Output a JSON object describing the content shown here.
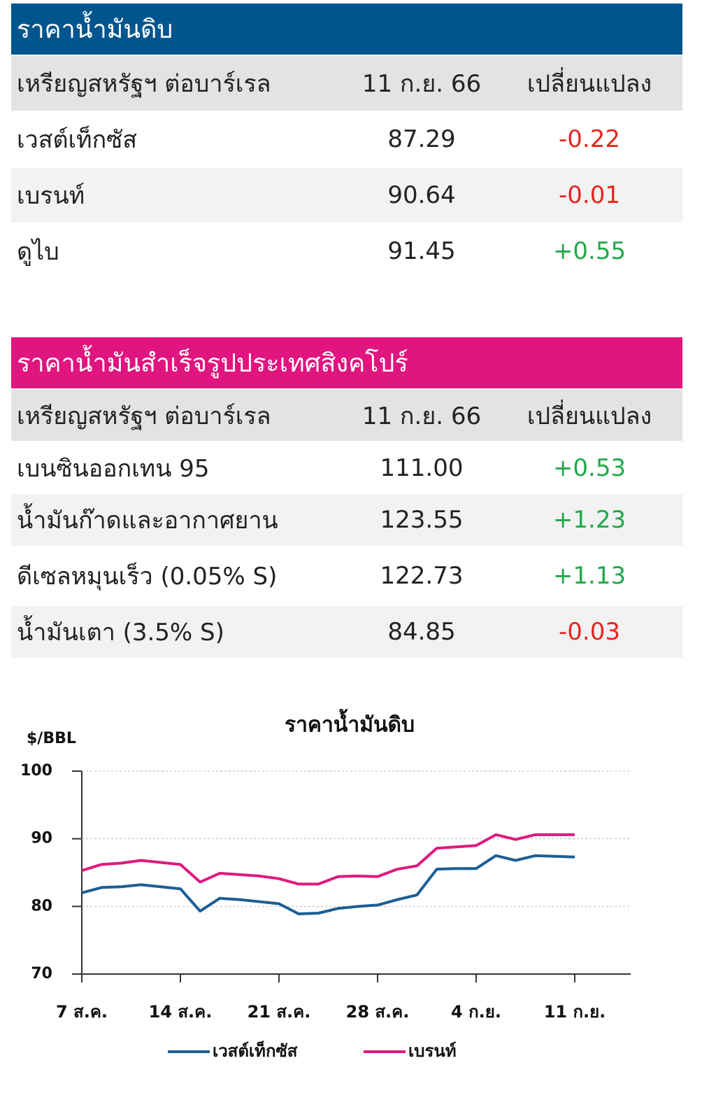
{
  "tables": [
    {
      "title": "ราคาน้ำมันดิบ",
      "header": [
        "เหรียญสหรัฐฯ ต่อบาร์เรล",
        "11 ก.ย. 66",
        "เปลี่ยนแปลง"
      ],
      "rows": [
        [
          "เวสต์เท็กซัส",
          "87.29",
          "-0.22"
        ],
        [
          "เบรนท์",
          "90.64",
          "-0.01"
        ],
        [
          "ดูไบ",
          "91.45",
          "+0.55"
        ]
      ]
    },
    {
      "title": "ราคาน้ำมันสำเร็จรูปประเทศสิงคโปร์",
      "header": [
        "เหรียญสหรัฐฯ ต่อบาร์เรล",
        "11 ก.ย. 66",
        "เปลี่ยนแปลง"
      ],
      "rows": [
        [
          "เบนซินออกเทน 95",
          "111.00",
          "+0.53"
        ],
        [
          "น้ำมันก๊าดและอากาศยาน",
          "123.55",
          "+1.23"
        ],
        [
          "ดีเซลหมุนเร็ว (0.05% S)",
          "122.73",
          "+1.13"
        ],
        [
          "น้ำมันเตา (3.5% S)",
          "84.85",
          "-0.03"
        ]
      ]
    }
  ],
  "chart_data": {
    "type": "line",
    "title": "ราคาน้ำมันดิบ",
    "y_label": "$/BBL",
    "categories": [
      "7 ส.ค.",
      null,
      null,
      null,
      null,
      "14 ส.ค.",
      null,
      null,
      null,
      null,
      "21 ส.ค.",
      null,
      null,
      null,
      null,
      "28 ส.ค.",
      null,
      null,
      null,
      null,
      "4 ก.ย.",
      null,
      null,
      null,
      null,
      "11 ก.ย."
    ],
    "series": [
      {
        "name": "เวสต์เท็กซัส",
        "color": "#1b5e96",
        "values": [
          82.0,
          82.8,
          82.9,
          83.2,
          82.9,
          82.6,
          79.3,
          81.2,
          81.0,
          80.7,
          80.4,
          78.9,
          79.0,
          79.7,
          80.0,
          80.2,
          81.0,
          81.7,
          85.5,
          85.6,
          85.6,
          87.5,
          86.8,
          87.5,
          87.4,
          87.3
        ]
      },
      {
        "name": "เบรนท์",
        "color": "#e0197f",
        "values": [
          85.3,
          86.2,
          86.4,
          86.8,
          86.5,
          86.2,
          83.6,
          84.9,
          84.7,
          84.5,
          84.1,
          83.3,
          83.3,
          84.4,
          84.5,
          84.4,
          85.5,
          86.0,
          88.6,
          88.8,
          89.0,
          90.6,
          89.9,
          90.6,
          90.6,
          90.6
        ]
      }
    ],
    "ylim": [
      70,
      100
    ],
    "yticks": [
      70,
      80,
      90,
      100
    ],
    "grid": true,
    "legend": "bottom"
  }
}
